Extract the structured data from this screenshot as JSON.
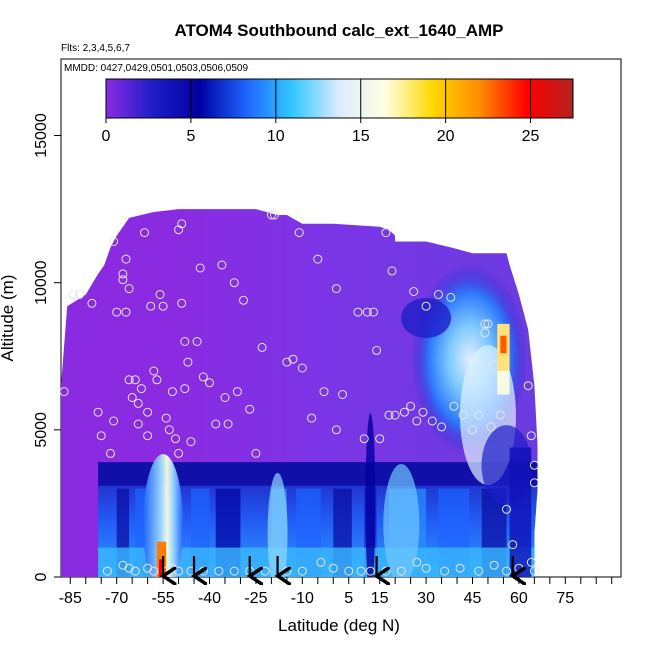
{
  "chart_data": {
    "type": "heatmap",
    "title": "ATOM4 Southbound calc_ext_1640_AMP",
    "flights_note": "Flts: 2,3,4,5,6,7",
    "dates_note": "MMDD: 0427,0429,0501,0503,0506,0509",
    "xlabel": "Latitude (deg N)",
    "ylabel": "Altitude (m)",
    "xlim": [
      -88,
      93
    ],
    "ylim": [
      0,
      17600
    ],
    "x_ticks": [
      -85,
      -70,
      -55,
      -40,
      -25,
      -10,
      5,
      15,
      30,
      45,
      60,
      75
    ],
    "x_tick_labels": [
      "-85",
      "-70",
      "-55",
      "-40",
      "-25",
      "-10",
      "5",
      "15",
      "30",
      "45",
      "60",
      "75"
    ],
    "y_ticks": [
      0,
      5000,
      10000,
      15000
    ],
    "y_tick_labels": [
      "0",
      "5000",
      "10000",
      "15000"
    ],
    "colorbar": {
      "ticks": [
        0,
        5,
        10,
        15,
        20,
        25
      ],
      "tick_labels": [
        "0",
        "5",
        "10",
        "15",
        "20",
        "25"
      ],
      "range": [
        0,
        27.5
      ],
      "colors": [
        "#8a2be2",
        "#1e1ec8",
        "#0000a0",
        "#1e64ff",
        "#33c8ff",
        "#dcecff",
        "#ffffe0",
        "#ffd700",
        "#ff8c00",
        "#ff0000",
        "#b22222"
      ]
    },
    "sample_points": [
      [
        -87,
        6300
      ],
      [
        -84,
        9600
      ],
      [
        -82,
        9600
      ],
      [
        -78,
        9300
      ],
      [
        -76,
        5600
      ],
      [
        -75,
        4800
      ],
      [
        -72,
        4200
      ],
      [
        -71,
        5300
      ],
      [
        -71,
        11400
      ],
      [
        -70,
        9000
      ],
      [
        -68,
        10300
      ],
      [
        -68,
        10100
      ],
      [
        -67,
        10800
      ],
      [
        -66,
        9800
      ],
      [
        -67,
        9000
      ],
      [
        -66,
        6700
      ],
      [
        -65,
        6100
      ],
      [
        -64,
        6700
      ],
      [
        -63,
        5900
      ],
      [
        -63,
        5200
      ],
      [
        -62,
        6400
      ],
      [
        -61,
        11700
      ],
      [
        -60,
        5600
      ],
      [
        -60,
        4800
      ],
      [
        -59,
        9200
      ],
      [
        -58,
        7000
      ],
      [
        -57,
        6700
      ],
      [
        -56,
        9600
      ],
      [
        -55,
        9200
      ],
      [
        -54,
        5400
      ],
      [
        -53,
        5000
      ],
      [
        -52,
        6300
      ],
      [
        -51,
        4700
      ],
      [
        -50,
        4200
      ],
      [
        -50,
        11800
      ],
      [
        -49,
        12000
      ],
      [
        -49,
        9300
      ],
      [
        -48,
        8000
      ],
      [
        -48,
        6400
      ],
      [
        -47,
        7300
      ],
      [
        -46,
        4600
      ],
      [
        -44,
        8000
      ],
      [
        -43,
        10500
      ],
      [
        -42,
        6800
      ],
      [
        -40,
        6600
      ],
      [
        -38,
        5200
      ],
      [
        -36,
        10600
      ],
      [
        -35,
        6100
      ],
      [
        -34,
        5200
      ],
      [
        -32,
        10000
      ],
      [
        -31,
        6300
      ],
      [
        -29,
        9400
      ],
      [
        -27,
        5700
      ],
      [
        -25,
        4200
      ],
      [
        -23,
        7800
      ],
      [
        -20,
        12300
      ],
      [
        -19,
        12300
      ],
      [
        -15,
        7300
      ],
      [
        -13,
        7400
      ],
      [
        -11,
        11700
      ],
      [
        -10,
        7100
      ],
      [
        -7,
        5400
      ],
      [
        -5,
        10800
      ],
      [
        -3,
        6300
      ],
      [
        1,
        9800
      ],
      [
        1,
        5000
      ],
      [
        3,
        6200
      ],
      [
        8,
        9000
      ],
      [
        10,
        4700
      ],
      [
        11,
        9000
      ],
      [
        13,
        9000
      ],
      [
        14,
        7700
      ],
      [
        15,
        4700
      ],
      [
        17,
        11700
      ],
      [
        18,
        5500
      ],
      [
        19,
        10400
      ],
      [
        20,
        5500
      ],
      [
        23,
        5600
      ],
      [
        25,
        5800
      ],
      [
        26,
        9700
      ],
      [
        27,
        5300
      ],
      [
        29,
        5600
      ],
      [
        30,
        9200
      ],
      [
        32,
        5300
      ],
      [
        34,
        9600
      ],
      [
        35,
        5100
      ],
      [
        38,
        9500
      ],
      [
        39,
        5800
      ],
      [
        42,
        5500
      ],
      [
        45,
        5000
      ],
      [
        47,
        5500
      ],
      [
        49,
        8600
      ],
      [
        49,
        8300
      ],
      [
        50,
        8600
      ],
      [
        51,
        5100
      ],
      [
        52,
        7200
      ],
      [
        54,
        5500
      ],
      [
        56,
        2300
      ],
      [
        58,
        1100
      ],
      [
        63,
        6500
      ],
      [
        64,
        4800
      ],
      [
        65,
        3800
      ],
      [
        65,
        3200
      ],
      [
        64,
        500
      ],
      [
        65,
        200
      ],
      [
        -73,
        200
      ],
      [
        -68,
        400
      ],
      [
        -66,
        300
      ],
      [
        -64,
        200
      ],
      [
        -60,
        300
      ],
      [
        -58,
        200
      ],
      [
        -54,
        200
      ],
      [
        -52,
        300
      ],
      [
        -50,
        200
      ],
      [
        -46,
        200
      ],
      [
        -42,
        200
      ],
      [
        -37,
        200
      ],
      [
        -32,
        200
      ],
      [
        -27,
        200
      ],
      [
        -22,
        200
      ],
      [
        -15,
        200
      ],
      [
        -10,
        200
      ],
      [
        -4,
        500
      ],
      [
        0,
        300
      ],
      [
        5,
        200
      ],
      [
        9,
        200
      ],
      [
        12,
        200
      ],
      [
        17,
        200
      ],
      [
        22,
        200
      ],
      [
        27,
        500
      ],
      [
        30,
        300
      ],
      [
        36,
        200
      ],
      [
        41,
        300
      ],
      [
        47,
        200
      ],
      [
        52,
        400
      ],
      [
        56,
        200
      ],
      [
        60,
        300
      ]
    ],
    "arrows_latitude": [
      -55,
      -45,
      -27,
      -18,
      14,
      58
    ]
  }
}
